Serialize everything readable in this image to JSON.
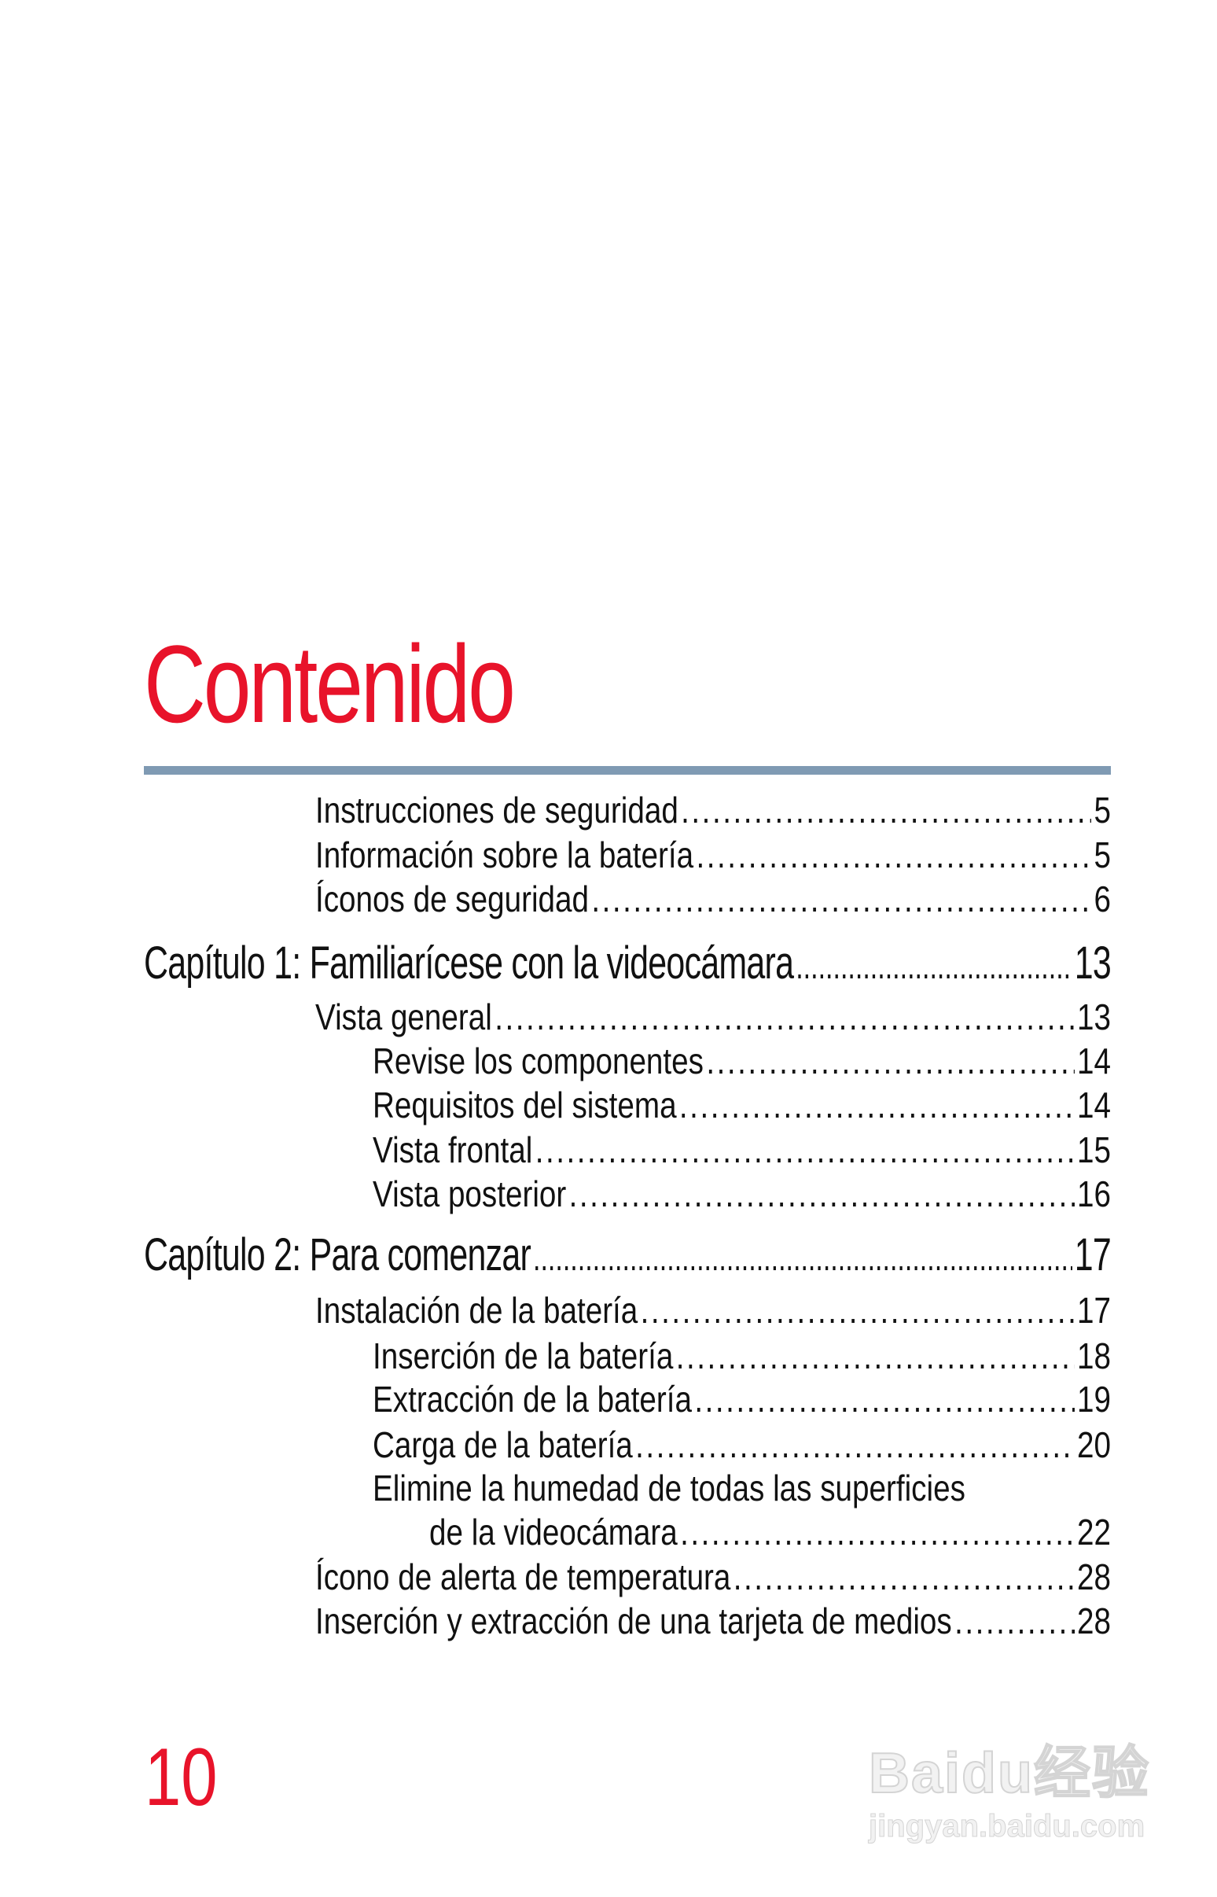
{
  "title": "Contenido",
  "colors": {
    "accent": "#e8132a",
    "rule": "#7f9ab3"
  },
  "toc": [
    {
      "level": 1,
      "text": "Instrucciones de seguridad",
      "page": "5"
    },
    {
      "level": 1,
      "text": "Información sobre la batería",
      "page": "5"
    },
    {
      "level": 1,
      "text": "Íconos de seguridad",
      "page": "6"
    },
    {
      "level": 0,
      "text": "Capítulo 1: Familiarícese con la videocámara",
      "page": "13"
    },
    {
      "level": 1,
      "text": "Vista general",
      "page": "13"
    },
    {
      "level": 2,
      "text": "Revise los componentes",
      "page": "14"
    },
    {
      "level": 2,
      "text": "Requisitos del sistema",
      "page": "14"
    },
    {
      "level": 2,
      "text": "Vista frontal",
      "page": "15"
    },
    {
      "level": 2,
      "text": "Vista posterior",
      "page": "16"
    },
    {
      "level": 0,
      "text": "Capítulo 2: Para comenzar",
      "page": "17"
    },
    {
      "level": 1,
      "text": "Instalación de la batería",
      "page": "17"
    },
    {
      "level": 2,
      "text": "Inserción de la batería",
      "page": "18"
    },
    {
      "level": 2,
      "text": "Extracción de la batería",
      "page": "19"
    },
    {
      "level": 2,
      "text": "Carga de la batería",
      "page": "20"
    },
    {
      "level": 2,
      "text": "Elimine la humedad de todas las superficies",
      "page": ""
    },
    {
      "level": 3,
      "text": "de la videocámara",
      "page": "22"
    },
    {
      "level": 1,
      "text": "Ícono de alerta de temperatura",
      "page": "28"
    },
    {
      "level": 1,
      "text": "Inserción y extracción de una tarjeta de medios",
      "page": "28"
    }
  ],
  "page_number": "10",
  "watermark": {
    "line1": "Baidu经验",
    "line2": "jingyan.baidu.com"
  }
}
